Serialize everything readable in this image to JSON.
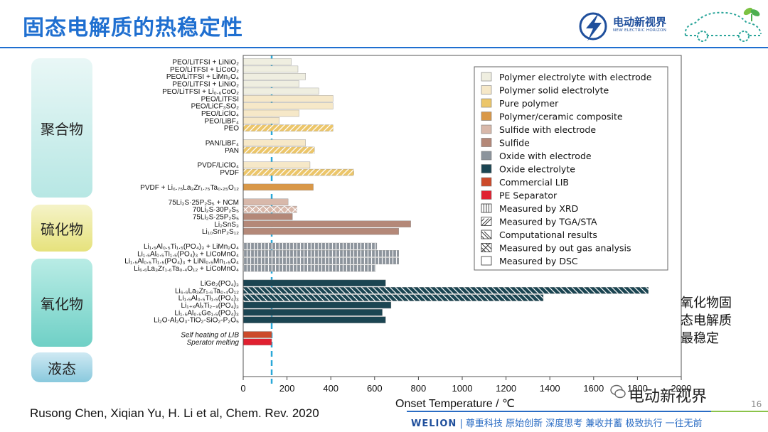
{
  "slide": {
    "title": "固态电解质的热稳定性",
    "logo_text": "电动新视界",
    "logo_sub": "NEW ELECTRIC HORIZON",
    "note": "氧化物固态电解质最稳定",
    "reference": "Rusong Chen, Xiqian Yu, H. Li et al, Chem. Rev. 2020",
    "watermark": "电动新视界",
    "page_number": "16",
    "footer_brand": "WELION",
    "footer_slogan": "| 尊重科技  原始创新  深度思考  兼收并蓄  极致执行  一往无前"
  },
  "categories": {
    "polymer": "聚合物",
    "sulfide": "硫化物",
    "oxide": "氧化物",
    "liquid": "液态"
  },
  "colors": {
    "polymer_with_electrode": "#efeee0",
    "polymer_solid_electrolyte": "#f6e8c8",
    "pure_polymer": "#ecc66a",
    "polymer_ceramic": "#d99848",
    "sulfide_with_electrode": "#d8b8aa",
    "sulfide": "#b48878",
    "oxide_with_electrode": "#8c949c",
    "oxide_electrolyte": "#1b4552",
    "commercial_lib": "#cc4a2a",
    "pe_separator": "#e02030",
    "reference_line": "#2aa8d8"
  },
  "chart_data": {
    "type": "bar",
    "orientation": "horizontal",
    "xlabel": "Onset Temperature / ℃",
    "xlim": [
      0,
      2000
    ],
    "xticks": [
      0,
      200,
      400,
      600,
      800,
      1000,
      1200,
      1400,
      1600,
      1800,
      2000
    ],
    "reference_line_x": 130,
    "legend_position": "top-right",
    "legend": [
      {
        "label": "Polymer electrolyte with electrode",
        "key": "polymer_with_electrode"
      },
      {
        "label": "Polymer solid electrolyte",
        "key": "polymer_solid_electrolyte"
      },
      {
        "label": "Pure polymer",
        "key": "pure_polymer"
      },
      {
        "label": "Polymer/ceramic composite",
        "key": "polymer_ceramic"
      },
      {
        "label": "Sulfide with electrode",
        "key": "sulfide_with_electrode"
      },
      {
        "label": "Sulfide",
        "key": "sulfide"
      },
      {
        "label": "Oxide with electrode",
        "key": "oxide_with_electrode"
      },
      {
        "label": "Oxide electrolyte",
        "key": "oxide_electrolyte"
      },
      {
        "label": "Commercial LIB",
        "key": "commercial_lib"
      },
      {
        "label": "PE Separator",
        "key": "pe_separator"
      },
      {
        "label": "Measured by XRD",
        "pattern": "xrd"
      },
      {
        "label": "Measured by TGA/STA",
        "pattern": "tga"
      },
      {
        "label": "Computational results",
        "pattern": "comp"
      },
      {
        "label": "Measured by out gas analysis",
        "pattern": "gas"
      },
      {
        "label": "Measured by DSC",
        "pattern": "dsc"
      }
    ],
    "bars": [
      {
        "label": "PEO/LiTFSI + LiNiO₂",
        "value": 220,
        "key": "polymer_with_electrode",
        "pattern": "dsc"
      },
      {
        "label": "PEO/LiTFSI + LiCoO₂",
        "value": 250,
        "key": "polymer_with_electrode",
        "pattern": "dsc"
      },
      {
        "label": "PEO/LiTFSI + LiMn₂O₄",
        "value": 285,
        "key": "polymer_with_electrode",
        "pattern": "dsc"
      },
      {
        "label": "PEO/LiTFSI + LiNiO₂",
        "value": 255,
        "key": "polymer_with_electrode",
        "pattern": "dsc"
      },
      {
        "label": "PEO/LiTFSI + Li₀.₆CoO₂",
        "value": 345,
        "key": "polymer_with_electrode",
        "pattern": "dsc"
      },
      {
        "label": "PEO/LiTFSI",
        "value": 410,
        "key": "polymer_solid_electrolyte",
        "pattern": "dsc"
      },
      {
        "label": "PEO/LiCF₃SO₂",
        "value": 410,
        "key": "polymer_solid_electrolyte",
        "pattern": "dsc"
      },
      {
        "label": "PEO/LiClO₄",
        "value": 255,
        "key": "polymer_solid_electrolyte",
        "pattern": "dsc"
      },
      {
        "label": "PEO/LiBF₄",
        "value": 165,
        "key": "polymer_solid_electrolyte",
        "pattern": "dsc"
      },
      {
        "label": "PEO",
        "value": 410,
        "key": "pure_polymer",
        "pattern": "tga"
      },
      {
        "gap": true
      },
      {
        "label": "PAN/LiBF₄",
        "value": 285,
        "key": "polymer_solid_electrolyte",
        "pattern": "dsc"
      },
      {
        "label": "PAN",
        "value": 325,
        "key": "pure_polymer",
        "pattern": "tga"
      },
      {
        "gap": true
      },
      {
        "label": "PVDF/LiClO₄",
        "value": 305,
        "key": "polymer_solid_electrolyte",
        "pattern": "dsc"
      },
      {
        "label": "PVDF",
        "value": 505,
        "key": "pure_polymer",
        "pattern": "tga"
      },
      {
        "gap": true
      },
      {
        "label": "PVDF + Li₆.₇₅La₃Zr₁.₇₅Ta₀.₂₅O₁₂",
        "value": 320,
        "key": "polymer_ceramic",
        "pattern": "dsc"
      },
      {
        "gap": true
      },
      {
        "label": "75Li₂S·25P₂S₅ + NCM",
        "value": 205,
        "key": "sulfide_with_electrode",
        "pattern": "dsc"
      },
      {
        "label": "70Li₂S·30P₂S₅",
        "value": 245,
        "key": "sulfide_with_electrode",
        "pattern": "gas"
      },
      {
        "label": "75Li₂S·25P₂S₅",
        "value": 225,
        "key": "sulfide",
        "pattern": "dsc"
      },
      {
        "label": "Li₂SnS₃",
        "value": 765,
        "key": "sulfide",
        "pattern": "dsc"
      },
      {
        "label": "Li₁₀SnP₂S₁₂",
        "value": 710,
        "key": "sulfide",
        "pattern": "dsc"
      },
      {
        "gap": true
      },
      {
        "label": "Li₁.₅Al₀.₅Ti₁.₅(PO₄)₃ + LiMn₂O₄",
        "value": 610,
        "key": "oxide_with_electrode",
        "pattern": "xrd"
      },
      {
        "label": "Li₁.₅Al₀.₅Ti₁.₅(PO₄)₃ + LiCoMnO₄",
        "value": 710,
        "key": "oxide_with_electrode",
        "pattern": "xrd"
      },
      {
        "label": "Li₁.₅Al₀.₅Ti₁.₅(PO₄)₃ + LiNi₀.₅Mn₁.₅O₄",
        "value": 710,
        "key": "oxide_with_electrode",
        "pattern": "xrd"
      },
      {
        "label": "Li₆.₆La₃Zr₁.₆Ta₀.₄O₁₂ + LiCoMnO₄",
        "value": 605,
        "key": "oxide_with_electrode",
        "pattern": "xrd"
      },
      {
        "gap": true
      },
      {
        "label": "LiGe₂(PO₄)₃",
        "value": 650,
        "key": "oxide_electrolyte",
        "pattern": "dsc"
      },
      {
        "label": "Li₆.₆La₃Zr₁.₆Ta₀.₄O₁₂",
        "value": 1850,
        "key": "oxide_electrolyte",
        "pattern": "comp"
      },
      {
        "label": "Li₁.₅Al₀.₅Ti₁.₅(PO₄)₃",
        "value": 1370,
        "key": "oxide_electrolyte",
        "pattern": "comp"
      },
      {
        "label": "Li₁₊ₓAlₓTi₂₋ₓ(PO₄)₃",
        "value": 675,
        "key": "oxide_electrolyte",
        "pattern": "dsc"
      },
      {
        "label": "Li₁.₅Al₀.₅Ge₁.₅(PO₄)₃",
        "value": 635,
        "key": "oxide_electrolyte",
        "pattern": "dsc"
      },
      {
        "label": "Li₂O-Al₂O₃-TiO₂-SiO₂-P₂O₅",
        "value": 650,
        "key": "oxide_electrolyte",
        "pattern": "dsc"
      },
      {
        "gap": true
      },
      {
        "label": "Self heating of LIB",
        "value": 130,
        "key": "commercial_lib",
        "pattern": "dsc",
        "italic": true
      },
      {
        "label": "Sperator melting",
        "value": 130,
        "key": "pe_separator",
        "pattern": "dsc",
        "italic": true
      }
    ]
  }
}
